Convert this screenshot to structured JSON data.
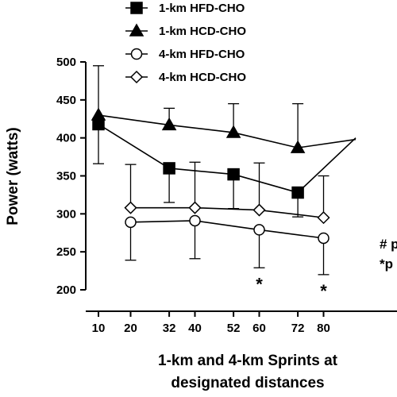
{
  "chart_data": {
    "type": "line",
    "title": "",
    "xlabel_lines": [
      "1-km and 4-km Sprints at",
      "designated distances"
    ],
    "ylabel": "Power (watts)",
    "ylim": [
      200,
      500
    ],
    "y_ticks": [
      200,
      250,
      300,
      350,
      400,
      450,
      500
    ],
    "x_ticks": [
      10,
      20,
      32,
      40,
      52,
      60,
      72,
      80
    ],
    "legend_position": "top",
    "series": [
      {
        "name": "1-km HFD-CHO",
        "marker": "square-filled",
        "x": [
          10,
          32,
          52,
          72,
          90
        ],
        "y": [
          418,
          360,
          352,
          328,
          400
        ],
        "err_up": [
          0,
          0,
          0,
          0,
          0
        ],
        "err_down": [
          52,
          45,
          45,
          32,
          0
        ]
      },
      {
        "name": "1-km HCD-CHO",
        "marker": "triangle-filled",
        "x": [
          10,
          32,
          52,
          72,
          90
        ],
        "y": [
          430,
          417,
          407,
          387,
          398
        ],
        "err_up": [
          65,
          22,
          38,
          58,
          0
        ],
        "err_down": [
          0,
          0,
          0,
          0,
          0
        ]
      },
      {
        "name": "4-km HFD-CHO",
        "marker": "circle-open",
        "x": [
          20,
          40,
          60,
          80
        ],
        "y": [
          289,
          291,
          279,
          268
        ],
        "err_up": [
          0,
          0,
          0,
          0
        ],
        "err_down": [
          50,
          50,
          50,
          48
        ]
      },
      {
        "name": "4-km HCD-CHO",
        "marker": "diamond-open",
        "x": [
          20,
          40,
          60,
          80
        ],
        "y": [
          308,
          308,
          305,
          295
        ],
        "err_up": [
          57,
          60,
          62,
          55
        ],
        "err_down": [
          0,
          0,
          0,
          0
        ]
      }
    ],
    "annotations": [
      {
        "text": "*",
        "x": 60
      },
      {
        "text": "*",
        "x": 80
      }
    ],
    "notes": [
      "# p",
      "*p"
    ]
  }
}
